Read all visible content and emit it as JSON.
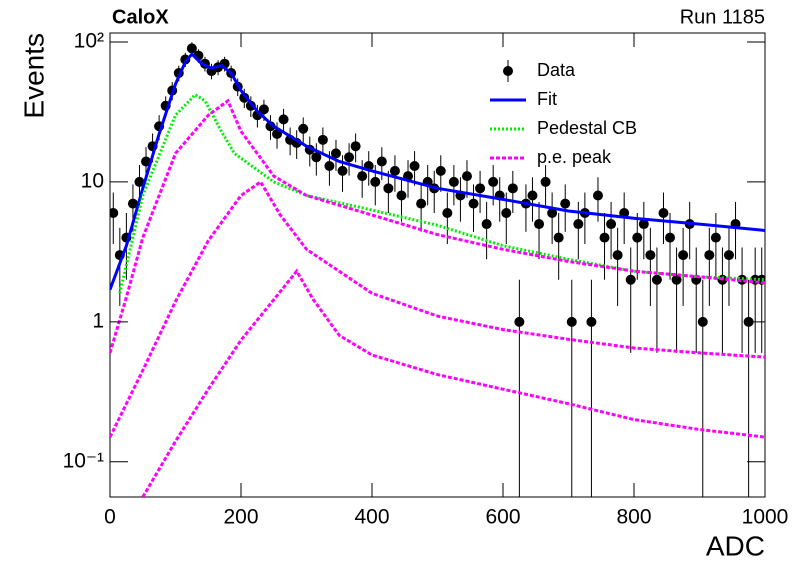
{
  "chart_data": {
    "type": "line",
    "title": "CaloX",
    "subtitle": "Run 1185",
    "x_label": "ADC",
    "y_label": "Events",
    "xlim": [
      0,
      1000
    ],
    "ylim": [
      0.056,
      116
    ],
    "log_y": true,
    "xticks": [
      0,
      200,
      400,
      600,
      800,
      1000
    ],
    "yticks": [
      {
        "value": 100,
        "label": "10²"
      },
      10,
      1,
      {
        "value": 0.1,
        "label": "10⁻¹"
      }
    ],
    "legend": "upper right",
    "series": [
      {
        "name": "Data",
        "color": "#000000",
        "style": "points",
        "x": [
          5,
          15,
          25,
          35,
          45,
          55,
          65,
          75,
          85,
          95,
          105,
          115,
          125,
          135,
          145,
          155,
          165,
          175,
          185,
          195,
          205,
          215,
          225,
          235,
          245,
          255,
          265,
          275,
          285,
          295,
          305,
          315,
          325,
          335,
          345,
          355,
          365,
          375,
          385,
          395,
          405,
          415,
          425,
          435,
          445,
          455,
          465,
          475,
          485,
          495,
          505,
          515,
          525,
          535,
          545,
          555,
          565,
          575,
          585,
          595,
          605,
          615,
          625,
          635,
          645,
          655,
          665,
          675,
          685,
          695,
          705,
          715,
          725,
          735,
          745,
          755,
          765,
          775,
          785,
          795,
          805,
          815,
          825,
          835,
          845,
          855,
          865,
          875,
          885,
          895,
          905,
          915,
          925,
          935,
          945,
          955,
          965,
          975,
          985,
          995
        ],
        "values": [
          6,
          3,
          4,
          7,
          10,
          14,
          18,
          25,
          35,
          45,
          60,
          75,
          90,
          80,
          70,
          62,
          66,
          70,
          60,
          48,
          40,
          35,
          30,
          33,
          25,
          22,
          28,
          20,
          19,
          24,
          17,
          15,
          20,
          13,
          16,
          12,
          15,
          18,
          11,
          13,
          10,
          14,
          9,
          12,
          8,
          11,
          13,
          7,
          10,
          9,
          12,
          6,
          10,
          8,
          11,
          7,
          9,
          5,
          10,
          8,
          6,
          9,
          1,
          7,
          8,
          5,
          10,
          6,
          4,
          7,
          1,
          5,
          6,
          1,
          8,
          4,
          5,
          3,
          6,
          2,
          4,
          5,
          3,
          2,
          6,
          4,
          2,
          3,
          5,
          2,
          1,
          3,
          4,
          2,
          3,
          5,
          2,
          1,
          2,
          2
        ],
        "errors": [
          2.4,
          1.7,
          2,
          2.6,
          3.2,
          3.7,
          4.2,
          5,
          5.9,
          6.7,
          7.7,
          8.7,
          9.5,
          8.9,
          8.4,
          7.9,
          8.1,
          8.4,
          7.7,
          6.9,
          6.3,
          5.9,
          5.5,
          5.7,
          5,
          4.7,
          5.3,
          4.5,
          4.4,
          4.9,
          4.1,
          3.9,
          4.5,
          3.6,
          4,
          3.5,
          3.9,
          4.2,
          3.3,
          3.6,
          3.2,
          3.7,
          3,
          3.5,
          2.8,
          3.3,
          3.6,
          2.6,
          3.2,
          3,
          3.5,
          2.4,
          3.2,
          2.8,
          3.3,
          2.6,
          3,
          2.2,
          3.2,
          2.8,
          2.4,
          3,
          1,
          2.6,
          2.8,
          2.2,
          3.2,
          2.4,
          2,
          2.6,
          1,
          2.2,
          2.4,
          1,
          2.8,
          2,
          2.2,
          1.7,
          2.4,
          1.4,
          2,
          2.2,
          1.7,
          1.4,
          2.4,
          2,
          1.4,
          1.7,
          2.2,
          1.4,
          1,
          1.7,
          2,
          1.4,
          1.7,
          2.2,
          1.4,
          1,
          1.4,
          1.4
        ]
      },
      {
        "name": "Fit",
        "color": "#0000ff",
        "style": "solid",
        "x": [
          0,
          25,
          50,
          75,
          100,
          115,
          125,
          140,
          155,
          170,
          185,
          200,
          225,
          250,
          300,
          350,
          400,
          500,
          600,
          700,
          800,
          900,
          1000
        ],
        "values": [
          1.7,
          3.5,
          9,
          22,
          50,
          72,
          82,
          70,
          65,
          68,
          60,
          45,
          32,
          25,
          18,
          14,
          12,
          9,
          7.5,
          6.2,
          5.5,
          5,
          4.5
        ]
      },
      {
        "name": "Pedestal CB",
        "color": "#00ee00",
        "style": "dotted",
        "x": [
          15,
          50,
          100,
          130,
          145,
          170,
          190,
          250,
          300,
          400,
          500,
          600,
          700,
          800,
          900,
          1000
        ],
        "values": [
          1.6,
          8,
          30,
          42,
          38,
          23,
          16,
          10,
          8,
          6.3,
          4.9,
          3.5,
          2.8,
          2.3,
          2.1,
          2.0
        ]
      },
      {
        "name": "p.e. peak",
        "color": "#ff00ff",
        "style": "dashed",
        "components": [
          {
            "x": [
              0,
              25,
              50,
              100,
              150,
              180,
              200,
              250,
              300,
              400,
              500,
              600,
              700,
              800,
              900,
              1000
            ],
            "values": [
              0.6,
              1.5,
              4,
              16,
              30,
              38,
              23,
              11,
              8,
              5.8,
              4.2,
              3.3,
              2.7,
              2.3,
              2.1,
              1.9
            ]
          },
          {
            "x": [
              0,
              50,
              100,
              150,
              200,
              230,
              260,
              300,
              400,
              500,
              600,
              700,
              800,
              900,
              1000
            ],
            "values": [
              0.15,
              0.45,
              1.4,
              3.8,
              8,
              10,
              5.8,
              3.3,
              1.6,
              1.1,
              0.88,
              0.75,
              0.65,
              0.6,
              0.56
            ]
          },
          {
            "x": [
              50,
              100,
              150,
              200,
              250,
              285,
              310,
              350,
              400,
              500,
              600,
              700,
              800,
              900,
              1000
            ],
            "values": [
              0.056,
              0.14,
              0.33,
              0.74,
              1.44,
              2.3,
              1.45,
              0.8,
              0.58,
              0.42,
              0.33,
              0.26,
              0.2,
              0.17,
              0.15
            ]
          }
        ]
      }
    ]
  }
}
